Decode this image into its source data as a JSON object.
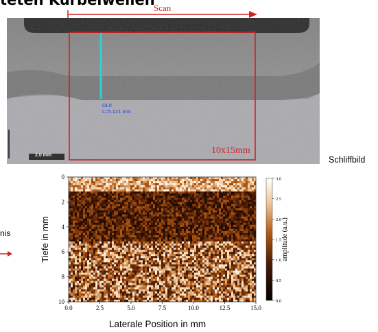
{
  "title": "teten Kurbelwellen",
  "scan_label": "Scan",
  "micrograph": {
    "measure_name": "DL0",
    "measure_length": "L=5.121 mm",
    "roi_label": "10x15mm",
    "scalebar_label": "2.0 mm"
  },
  "schliffbild_label": "Schliffbild",
  "ergebnis_fragment": "nis",
  "colors": {
    "accent_red": "#d42020",
    "cyan_line": "#29d3d3",
    "measure_text": "#2244dd"
  },
  "chart_data": {
    "type": "heatmap",
    "xlabel": "Laterale Position in mm",
    "ylabel": "Tiefe in mm",
    "xticks": [
      "0.0",
      "2.5",
      "5.0",
      "7.5",
      "10.0",
      "12.5",
      "15.0"
    ],
    "yticks": [
      "0",
      "2",
      "4",
      "6",
      "8",
      "10"
    ],
    "xlim": [
      0,
      15
    ],
    "ylim": [
      0,
      10
    ],
    "y_inverted": true,
    "colorbar": {
      "label": "amplitude (a.u.)",
      "ticks": [
        "0.0",
        "0.5",
        "1.0",
        "1.5",
        "2.0",
        "2.5",
        "3.0"
      ],
      "range": [
        0,
        3
      ]
    },
    "regions": [
      {
        "depth_from": 0,
        "depth_to": 1.2,
        "description": "bright surface band",
        "amplitude": 2.4
      },
      {
        "depth_from": 1.2,
        "depth_to": 5.2,
        "description": "dark hardened layer",
        "amplitude": 0.6
      },
      {
        "depth_from": 5.2,
        "depth_to": 10,
        "description": "coarse bright grain structure",
        "amplitude": 1.8
      }
    ]
  }
}
